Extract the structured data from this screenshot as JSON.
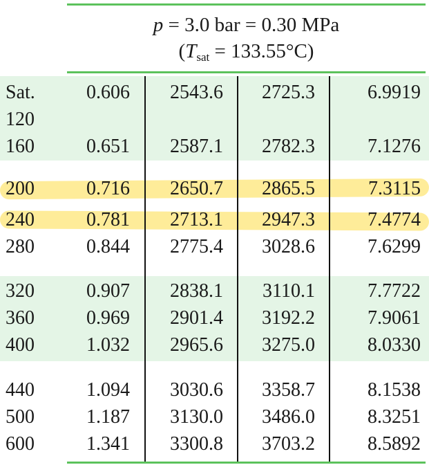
{
  "header": {
    "p_symbol": "p",
    "pressure_text": " = 3.0 bar = 0.30 MPa",
    "open_paren": "(",
    "t_symbol": "T",
    "t_subscript": "sat",
    "temp_text": " = 133.55°C)"
  },
  "rows": [
    [
      "Sat.",
      "0.606",
      "2543.6",
      "2725.3",
      "6.9919"
    ],
    [
      "120",
      "",
      "",
      "",
      ""
    ],
    [
      "160",
      "0.651",
      "2587.1",
      "2782.3",
      "7.1276"
    ],
    [
      "200",
      "0.716",
      "2650.7",
      "2865.5",
      "7.3115"
    ],
    [
      "240",
      "0.781",
      "2713.1",
      "2947.3",
      "7.4774"
    ],
    [
      "280",
      "0.844",
      "2775.4",
      "3028.6",
      "7.6299"
    ],
    [
      "320",
      "0.907",
      "2838.1",
      "3110.1",
      "7.7722"
    ],
    [
      "360",
      "0.969",
      "2901.4",
      "3192.2",
      "7.9061"
    ],
    [
      "400",
      "1.032",
      "2965.6",
      "3275.0",
      "8.0330"
    ],
    [
      "440",
      "1.094",
      "3030.6",
      "3358.7",
      "8.1538"
    ],
    [
      "500",
      "1.187",
      "3130.0",
      "3486.0",
      "8.3251"
    ],
    [
      "600",
      "1.341",
      "3300.8",
      "3703.2",
      "8.5892"
    ]
  ],
  "highlighted_rows": [
    "200",
    "240"
  ],
  "colors": {
    "rule_green": "#5cc25c",
    "band_green": "#e4f5e6",
    "highlighter_yellow": "#fde05a"
  }
}
